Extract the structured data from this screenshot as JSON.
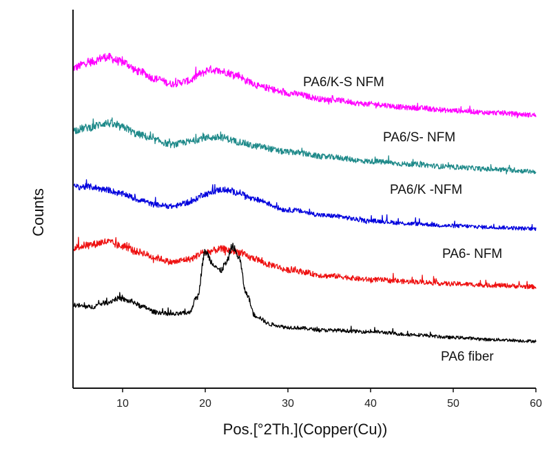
{
  "chart_data": {
    "type": "line",
    "xlabel": "Pos.[°2Th.](Copper(Cu))",
    "ylabel": "Counts",
    "xlim": [
      4,
      60
    ],
    "xticks": [
      10,
      20,
      30,
      40,
      50,
      60
    ],
    "y_tick_labels": false,
    "grid": false,
    "legend": "inline labels",
    "series": [
      {
        "name": "PA6/K-S NFM",
        "color": "#ff00ff",
        "offset": 4,
        "noise": 0.06,
        "points": [
          [
            4,
            0.7
          ],
          [
            6,
            0.78
          ],
          [
            8,
            0.85
          ],
          [
            10,
            0.78
          ],
          [
            12,
            0.65
          ],
          [
            14,
            0.55
          ],
          [
            16,
            0.48
          ],
          [
            18,
            0.52
          ],
          [
            19.5,
            0.62
          ],
          [
            20.5,
            0.68
          ],
          [
            22,
            0.65
          ],
          [
            24,
            0.6
          ],
          [
            25,
            0.52
          ],
          [
            27,
            0.43
          ],
          [
            30,
            0.35
          ],
          [
            35,
            0.26
          ],
          [
            40,
            0.2
          ],
          [
            45,
            0.15
          ],
          [
            50,
            0.11
          ],
          [
            55,
            0.08
          ],
          [
            60,
            0.05
          ]
        ]
      },
      {
        "name": "PA6/S- NFM",
        "color": "#1f8a8a",
        "offset": 3,
        "noise": 0.06,
        "points": [
          [
            4,
            0.62
          ],
          [
            6,
            0.66
          ],
          [
            8,
            0.72
          ],
          [
            10,
            0.66
          ],
          [
            12,
            0.56
          ],
          [
            14,
            0.48
          ],
          [
            16,
            0.42
          ],
          [
            18,
            0.46
          ],
          [
            20,
            0.52
          ],
          [
            22,
            0.52
          ],
          [
            24,
            0.46
          ],
          [
            26,
            0.4
          ],
          [
            30,
            0.32
          ],
          [
            35,
            0.25
          ],
          [
            40,
            0.19
          ],
          [
            45,
            0.15
          ],
          [
            50,
            0.11
          ],
          [
            55,
            0.08
          ],
          [
            60,
            0.05
          ]
        ]
      },
      {
        "name": "PA6/K -NFM",
        "color": "#0000dd",
        "offset": 2,
        "noise": 0.05,
        "points": [
          [
            4,
            0.62
          ],
          [
            6,
            0.62
          ],
          [
            8,
            0.58
          ],
          [
            10,
            0.52
          ],
          [
            12,
            0.44
          ],
          [
            14,
            0.37
          ],
          [
            16,
            0.35
          ],
          [
            18,
            0.4
          ],
          [
            20,
            0.52
          ],
          [
            22,
            0.58
          ],
          [
            24,
            0.54
          ],
          [
            26,
            0.44
          ],
          [
            30,
            0.3
          ],
          [
            35,
            0.22
          ],
          [
            40,
            0.15
          ],
          [
            45,
            0.11
          ],
          [
            50,
            0.08
          ],
          [
            55,
            0.06
          ],
          [
            60,
            0.04
          ]
        ]
      },
      {
        "name": "PA6- NFM",
        "color": "#ee1111",
        "offset": 1,
        "noise": 0.06,
        "points": [
          [
            4,
            0.56
          ],
          [
            6,
            0.6
          ],
          [
            8,
            0.64
          ],
          [
            10,
            0.58
          ],
          [
            12,
            0.5
          ],
          [
            14,
            0.42
          ],
          [
            16,
            0.36
          ],
          [
            18,
            0.4
          ],
          [
            20,
            0.5
          ],
          [
            22,
            0.54
          ],
          [
            24,
            0.5
          ],
          [
            25.5,
            0.42
          ],
          [
            28,
            0.32
          ],
          [
            30,
            0.25
          ],
          [
            35,
            0.17
          ],
          [
            40,
            0.12
          ],
          [
            45,
            0.09
          ],
          [
            50,
            0.06
          ],
          [
            55,
            0.04
          ],
          [
            60,
            0.02
          ]
        ]
      },
      {
        "name": "PA6 fiber",
        "color": "#000000",
        "offset": 0,
        "noise": 0.04,
        "points": [
          [
            4,
            0.55
          ],
          [
            6,
            0.52
          ],
          [
            8,
            0.58
          ],
          [
            9.5,
            0.64
          ],
          [
            11,
            0.6
          ],
          [
            12.5,
            0.52
          ],
          [
            14,
            0.45
          ],
          [
            16,
            0.42
          ],
          [
            18,
            0.44
          ],
          [
            19,
            0.65
          ],
          [
            20,
            1.28
          ],
          [
            21,
            1.12
          ],
          [
            21.8,
            1.02
          ],
          [
            22.5,
            1.12
          ],
          [
            23.3,
            1.36
          ],
          [
            24,
            1.22
          ],
          [
            25,
            0.7
          ],
          [
            26,
            0.4
          ],
          [
            28,
            0.28
          ],
          [
            30,
            0.24
          ],
          [
            35,
            0.2
          ],
          [
            40,
            0.18
          ],
          [
            45,
            0.14
          ],
          [
            50,
            0.1
          ],
          [
            55,
            0.07
          ],
          [
            60,
            0.05
          ]
        ]
      }
    ]
  }
}
